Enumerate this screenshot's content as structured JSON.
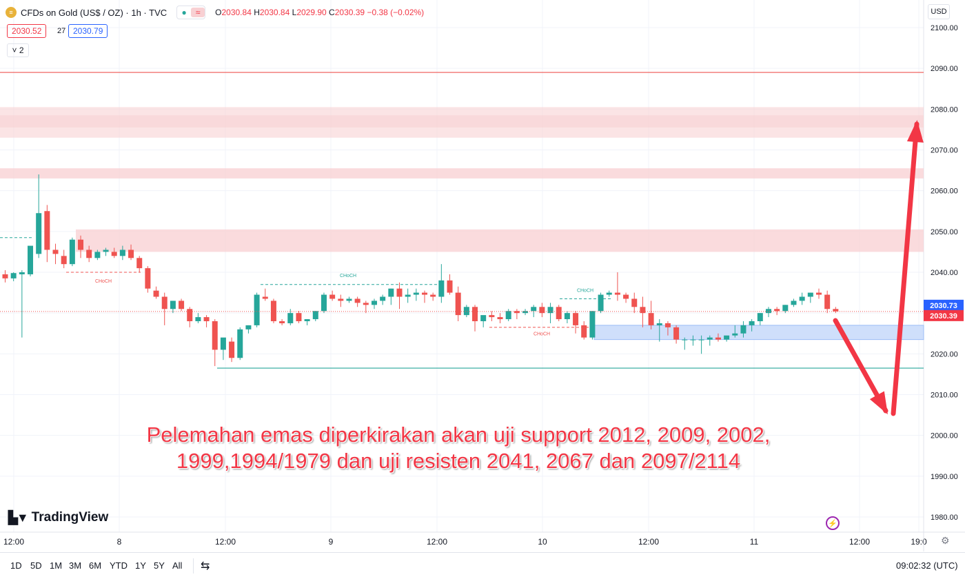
{
  "header": {
    "symbol_title": "CFDs on Gold (US$ / OZ) · 1h · TVC",
    "logo_text": "≡",
    "visibility_icon": "●",
    "indicator_icon": "≈",
    "ohlc": {
      "o_label": "O",
      "o_value": "2030.84",
      "h_label": "H",
      "h_value": "2030.84",
      "l_label": "L",
      "l_value": "2029.90",
      "c_label": "C",
      "c_value": "2030.39",
      "change": "−0.38 (−0.02%)"
    }
  },
  "quote": {
    "bid": "2030.52",
    "spread": "27",
    "ask": "2030.79"
  },
  "indicator_toggle": "˅ 2",
  "currency": "USD",
  "brand": "TradingView",
  "annotation": {
    "line1": "Pelemahan emas diperkirakan akan uji support 2012, 2009, 2002,",
    "line2": "1999,1994/1979 dan uji resisten 2041, 2067 dan 2097/2114"
  },
  "bottom_bar": {
    "timeframes": [
      "1D",
      "5D",
      "1M",
      "3M",
      "6M",
      "YTD",
      "1Y",
      "5Y",
      "All"
    ],
    "clock": "09:02:32 (UTC)"
  },
  "colors": {
    "up": "#26a69a",
    "down": "#ef5350",
    "zone": "#f9d2d4",
    "blue_zone": "#cfdffb",
    "arrow": "#f23645"
  },
  "chart_data": {
    "type": "candlestick",
    "title": "CFDs on Gold (US$ / OZ) · 1h · TVC",
    "ylim": [
      1976,
      2104
    ],
    "y_ticks": [
      "1980.00",
      "1990.00",
      "2000.00",
      "2010.00",
      "2020.00",
      "2030.00",
      "2040.00",
      "2050.00",
      "2060.00",
      "2070.00",
      "2080.00",
      "2090.00",
      "2100.00"
    ],
    "x_ticks": [
      "12:00",
      "8",
      "12:00",
      "9",
      "12:00",
      "10",
      "12:00",
      "11",
      "12:00",
      "19:0"
    ],
    "last_price_labels": [
      {
        "value": "2030.73",
        "color": "#2962ff"
      },
      {
        "value": "2030.39",
        "color": "#f23645"
      }
    ],
    "candles": [
      [
        2039.5,
        2040.5,
        2037.5,
        2038.5
      ],
      [
        2038.5,
        2040,
        2037.8,
        2039.8
      ],
      [
        2039.5,
        2040.5,
        2024,
        2040
      ],
      [
        2039.5,
        2046,
        2039,
        2046.5
      ],
      [
        2044.5,
        2064,
        2043.5,
        2054.5
      ],
      [
        2055,
        2056.5,
        2042.5,
        2045.5
      ],
      [
        2045.5,
        2047,
        2042,
        2044.5
      ],
      [
        2044,
        2045.5,
        2041,
        2042
      ],
      [
        2042,
        2048.5,
        2041.5,
        2048
      ],
      [
        2048,
        2049,
        2043.5,
        2045.5
      ],
      [
        2045.5,
        2046.5,
        2042.5,
        2043.5
      ],
      [
        2043.5,
        2045.5,
        2043,
        2045
      ],
      [
        2045,
        2046,
        2044,
        2045.5
      ],
      [
        2045,
        2046,
        2043.5,
        2044
      ],
      [
        2044,
        2046.5,
        2043,
        2045.5
      ],
      [
        2045.5,
        2046.8,
        2043,
        2043.5
      ],
      [
        2043.5,
        2044,
        2040,
        2041
      ],
      [
        2041,
        2041.5,
        2035,
        2036
      ],
      [
        2035.5,
        2036.5,
        2033.5,
        2034
      ],
      [
        2034,
        2035,
        2027,
        2031
      ],
      [
        2031,
        2033,
        2030,
        2033
      ],
      [
        2033,
        2033.5,
        2030.5,
        2031
      ],
      [
        2031,
        2031.5,
        2026.5,
        2028
      ],
      [
        2028,
        2030,
        2027.5,
        2029
      ],
      [
        2029,
        2029.5,
        2026.5,
        2028
      ],
      [
        2028,
        2028.5,
        2017,
        2021
      ],
      [
        2021,
        2023,
        2018.5,
        2024
      ],
      [
        2023,
        2024,
        2018,
        2019
      ],
      [
        2019,
        2026.5,
        2018.5,
        2026
      ],
      [
        2026,
        2027,
        2025,
        2027
      ],
      [
        2027,
        2035,
        2026.5,
        2034.5
      ],
      [
        2034,
        2036,
        2033,
        2033.5
      ],
      [
        2033,
        2033.5,
        2027.5,
        2028
      ],
      [
        2028,
        2028.5,
        2027,
        2027.5
      ],
      [
        2027.5,
        2031,
        2027,
        2030
      ],
      [
        2030,
        2030.5,
        2027.5,
        2028
      ],
      [
        2028,
        2028.5,
        2027,
        2028.5
      ],
      [
        2028.5,
        2030.5,
        2028,
        2030.5
      ],
      [
        2030.5,
        2035,
        2030,
        2034.5
      ],
      [
        2034.5,
        2035.5,
        2033,
        2033.5
      ],
      [
        2033.5,
        2034.5,
        2031.5,
        2033
      ],
      [
        2033,
        2034,
        2032.5,
        2033.5
      ],
      [
        2033.5,
        2034,
        2031.5,
        2032.5
      ],
      [
        2032.5,
        2033,
        2030,
        2032
      ],
      [
        2032,
        2033.5,
        2031,
        2033
      ],
      [
        2033,
        2034.5,
        2032,
        2034
      ],
      [
        2034,
        2036,
        2032,
        2036
      ],
      [
        2036,
        2037.5,
        2031,
        2034
      ],
      [
        2034,
        2036,
        2032.5,
        2034.5
      ],
      [
        2034.5,
        2036,
        2033,
        2035
      ],
      [
        2035,
        2035.5,
        2032.5,
        2034.5
      ],
      [
        2034.5,
        2035,
        2033,
        2034
      ],
      [
        2034,
        2042,
        2032.5,
        2038
      ],
      [
        2038,
        2039.5,
        2034.5,
        2035
      ],
      [
        2035,
        2036.5,
        2028,
        2029.5
      ],
      [
        2029.5,
        2032,
        2029,
        2031.5
      ],
      [
        2031.5,
        2032,
        2025.5,
        2028
      ],
      [
        2028,
        2028.5,
        2026.5,
        2029.5
      ],
      [
        2029.5,
        2030.5,
        2028,
        2029
      ],
      [
        2029,
        2030,
        2027.5,
        2028.5
      ],
      [
        2028.5,
        2031,
        2028,
        2030.5
      ],
      [
        2030.5,
        2031,
        2028.5,
        2030
      ],
      [
        2030,
        2031,
        2029.5,
        2030.5
      ],
      [
        2030.5,
        2032,
        2029,
        2031.5
      ],
      [
        2031.5,
        2032.5,
        2029,
        2030
      ],
      [
        2030,
        2032.5,
        2027.5,
        2031.5
      ],
      [
        2031.5,
        2032,
        2028,
        2028.5
      ],
      [
        2028.5,
        2030.5,
        2027.5,
        2030
      ],
      [
        2030,
        2030.5,
        2025,
        2027
      ],
      [
        2027,
        2028,
        2023.5,
        2024
      ],
      [
        2024,
        2030.5,
        2023.5,
        2030.5
      ],
      [
        2030.5,
        2035,
        2030,
        2034.5
      ],
      [
        2034.5,
        2035.5,
        2034,
        2035
      ],
      [
        2035,
        2040,
        2033,
        2034.5
      ],
      [
        2034.5,
        2035,
        2032.5,
        2033.5
      ],
      [
        2033.5,
        2035,
        2030,
        2031.5
      ],
      [
        2031.5,
        2034,
        2026.5,
        2030
      ],
      [
        2030,
        2033,
        2026,
        2027
      ],
      [
        2027,
        2028.5,
        2023,
        2027.5
      ],
      [
        2027.5,
        2028,
        2024.5,
        2026.5
      ],
      [
        2026.5,
        2027,
        2022.5,
        2023.5
      ],
      [
        2023.5,
        2024,
        2021,
        2023.5
      ],
      [
        2023.5,
        2024.5,
        2022,
        2023.5
      ],
      [
        2023.5,
        2024.5,
        2020,
        2023.5
      ],
      [
        2023.5,
        2024.5,
        2022,
        2024
      ],
      [
        2024,
        2025,
        2023,
        2023.5
      ],
      [
        2023.5,
        2024,
        2023,
        2024.5
      ],
      [
        2024.5,
        2027,
        2024,
        2025
      ],
      [
        2025,
        2028,
        2024,
        2027
      ],
      [
        2027,
        2028.5,
        2025.5,
        2028
      ],
      [
        2028,
        2030,
        2027,
        2030
      ],
      [
        2030,
        2031.5,
        2029,
        2031
      ],
      [
        2031,
        2031.5,
        2029.5,
        2030.5
      ],
      [
        2030.5,
        2032,
        2030,
        2032
      ],
      [
        2032,
        2033.5,
        2031.5,
        2033
      ],
      [
        2033,
        2035,
        2032,
        2034
      ],
      [
        2034,
        2035,
        2032.5,
        2035
      ],
      [
        2035,
        2036,
        2033.5,
        2034.5
      ],
      [
        2034.5,
        2035.5,
        2030,
        2031
      ],
      [
        2031,
        2031.5,
        2030,
        2030.4
      ]
    ]
  }
}
